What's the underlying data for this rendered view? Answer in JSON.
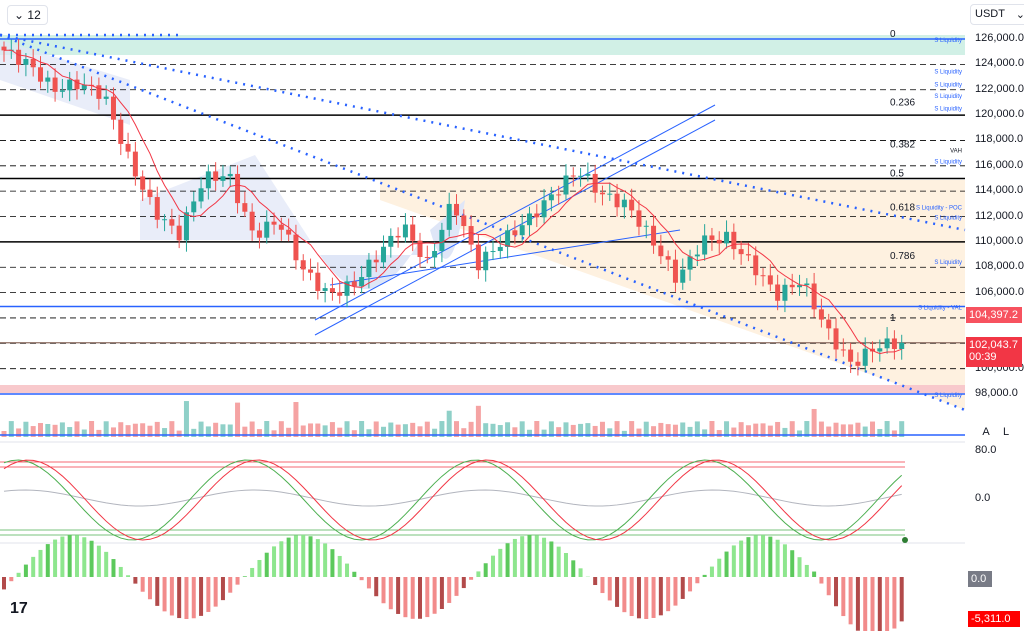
{
  "toolbar": {
    "interval": "12",
    "interval_icon": "chevron-down-icon",
    "currency": "USDT"
  },
  "price_axis": [
    "126,000.0",
    "124,000.0",
    "122,000.0",
    "120,000.0",
    "118,000.0",
    "116,000.0",
    "114,000.0",
    "112,000.0",
    "110,000.0",
    "108,000.0",
    "106,000.0",
    "100,000.0",
    "98,000.0"
  ],
  "price_axis_values": [
    126000,
    124000,
    122000,
    120000,
    118000,
    116000,
    114000,
    112000,
    110000,
    108000,
    106000,
    100000,
    98000
  ],
  "tags": {
    "vwap_value": "104,397.2",
    "last_price": "102,043.7",
    "countdown": "00:39"
  },
  "osc_axis": {
    "top": "80.0",
    "mid": "0.0"
  },
  "macd_tags": {
    "zero": "0.0",
    "value": "-5,311.0"
  },
  "buttons": {
    "auto": "A",
    "log": "L"
  },
  "logo": "TV",
  "colors": {
    "up": "#26a69a",
    "down": "#ef5350",
    "blue": "#2962ff",
    "tag_red": "#f23645"
  },
  "fib_levels": [
    {
      "label": "0",
      "price": 126000
    },
    {
      "label": "0.236",
      "price": 120600
    },
    {
      "label": "0.382",
      "price": 117300
    },
    {
      "label": "0.5",
      "price": 115000
    },
    {
      "label": "0.618",
      "price": 112300
    },
    {
      "label": "0.786",
      "price": 108500
    },
    {
      "label": "1",
      "price": 103600
    }
  ],
  "liquidity_levels": [
    {
      "label": "S Liquidity",
      "price": 126000
    },
    {
      "label": "S Liquidity",
      "price": 123500
    },
    {
      "label": "S Liquidity",
      "price": 122500
    },
    {
      "label": "S Liquidity",
      "price": 121600
    },
    {
      "label": "S Liquidity",
      "price": 120600
    },
    {
      "label": "VAH",
      "price": 117300
    },
    {
      "label": "S Liquidity",
      "price": 116400
    },
    {
      "label": "S Liquidity - POC",
      "price": 112800
    },
    {
      "label": "S Liquidity",
      "price": 112000
    },
    {
      "label": "S Liquidity",
      "price": 108500
    },
    {
      "label": "S Liquidity - VAL",
      "price": 104900
    },
    {
      "label": "S Liquidity",
      "price": 98000
    }
  ],
  "chart_data": {
    "type": "candlestick",
    "key_closes": [
      125100,
      124000,
      122000,
      122500,
      121600,
      116500,
      112500,
      110500,
      115000,
      115300,
      110500,
      111700,
      107800,
      105800,
      106600,
      109000,
      111300,
      108200,
      113300,
      108200,
      110100,
      111700,
      113700,
      115700,
      113700,
      112900,
      110100,
      107000,
      110100,
      110300,
      108200,
      105800,
      107000,
      103000,
      100300,
      101800,
      102043.7
    ]
  }
}
